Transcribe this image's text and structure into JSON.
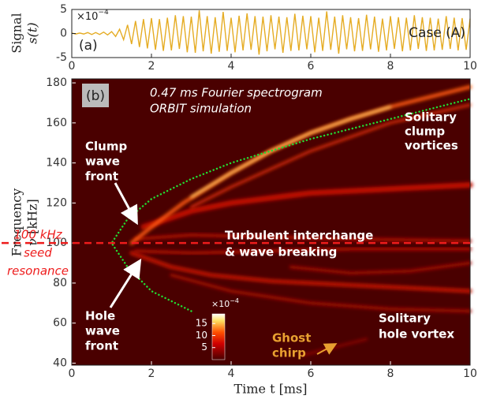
{
  "chart_data": [
    {
      "type": "line",
      "panel_label": "(a)",
      "title": "Case (A)",
      "ylabel": [
        "Signal",
        "s(t)"
      ],
      "multiplier": {
        "base": "×10",
        "exp": "−4"
      },
      "xlim": [
        0,
        10
      ],
      "ylim": [
        -5,
        5
      ],
      "xticks": [
        0,
        2,
        4,
        6,
        8,
        10
      ],
      "yticks": [
        -5,
        0,
        5
      ],
      "series": [
        {
          "color": "#e5ac24",
          "x": [
            0,
            0.1,
            0.2,
            0.3,
            0.4,
            0.5,
            0.6,
            0.7,
            0.8,
            0.9,
            1,
            1.1,
            1.2,
            1.3,
            1.4,
            1.5,
            1.6,
            1.7,
            1.8,
            1.9,
            2,
            2.1,
            2.2,
            2.3,
            2.4,
            2.5,
            2.6,
            2.7,
            2.8,
            2.9,
            3,
            3.1,
            3.2,
            3.3,
            3.4,
            3.5,
            3.6,
            3.7,
            3.8,
            3.9,
            4,
            4.1,
            4.2,
            4.3,
            4.4,
            4.5,
            4.6,
            4.7,
            4.8,
            4.9,
            5,
            5.1,
            5.2,
            5.3,
            5.4,
            5.5,
            5.6,
            5.7,
            5.8,
            5.9,
            6,
            6.1,
            6.2,
            6.3,
            6.4,
            6.5,
            6.6,
            6.7,
            6.8,
            6.9,
            7,
            7.1,
            7.2,
            7.3,
            7.4,
            7.5,
            7.6,
            7.7,
            7.8,
            7.9,
            8,
            8.1,
            8.2,
            8.3,
            8.4,
            8.5,
            8.6,
            8.7,
            8.8,
            8.9,
            9,
            9.1,
            9.2,
            9.3,
            9.4,
            9.5,
            9.6,
            9.7,
            9.8,
            9.9,
            10
          ],
          "values": [
            0.1,
            -0.1,
            0.1,
            -0.1,
            0.2,
            -0.2,
            0.2,
            -0.2,
            0.3,
            -0.3,
            0.4,
            -0.6,
            0.9,
            -1.3,
            1.8,
            -2.2,
            2.6,
            -2.8,
            3,
            -3.1,
            3.2,
            -3.4,
            3,
            -3.6,
            3.3,
            -3.5,
            3.8,
            -3.2,
            3.6,
            -3.9,
            3.5,
            -4,
            4.8,
            -3.7,
            3.6,
            -4.2,
            3.4,
            -3.8,
            4.5,
            -3.6,
            3.3,
            -3.9,
            3.7,
            -3.5,
            4.2,
            -3.4,
            3.6,
            -4.4,
            3.5,
            -3.7,
            3.8,
            -3.3,
            3.5,
            -4,
            3.4,
            -3.6,
            4.1,
            -3.5,
            3.7,
            -3.3,
            3.6,
            -3.9,
            3.3,
            -3.6,
            4.6,
            -3.4,
            3.5,
            -4.2,
            3.8,
            -3.3,
            3.4,
            -3.7,
            3.2,
            -3.6,
            3.9,
            -3.3,
            3.5,
            -3.8,
            3.1,
            -3.5,
            3.6,
            -3.2,
            3.4,
            -3.7,
            3.3,
            -3.5,
            3.8,
            -3.2,
            3.4,
            -3.6,
            3.3,
            -3.5,
            3.1,
            -3.4,
            3.6,
            -3.2,
            3.3,
            -3.5,
            3.2,
            -3.4,
            3.1
          ]
        }
      ]
    },
    {
      "type": "spectrogram",
      "panel_label": "(b)",
      "subtitle": [
        "0.47 ms Fourier spectrogram",
        "ORBIT simulation"
      ],
      "xlabel": "Time t [ms]",
      "ylabel": [
        "Frequency",
        "ν [kHz]"
      ],
      "xlim": [
        0,
        10
      ],
      "ylim": [
        39,
        182
      ],
      "xticks": [
        0,
        2,
        4,
        6,
        8,
        10
      ],
      "yticks": [
        40,
        60,
        80,
        100,
        120,
        140,
        160,
        180
      ],
      "background": "#4a0000",
      "series": [
        {
          "color": "#c01000",
          "x": [
            1.8,
            3,
            4,
            6,
            8,
            10
          ],
          "values": [
            108,
            116,
            120,
            125,
            127,
            129
          ]
        },
        {
          "color": "#b00c00",
          "x": [
            1.6,
            3,
            5,
            7,
            10
          ],
          "values": [
            102,
            104,
            103,
            102,
            101
          ]
        },
        {
          "color": "#b00c00",
          "x": [
            1.6,
            3,
            5,
            7,
            10
          ],
          "values": [
            96,
            95,
            96,
            97,
            97
          ]
        },
        {
          "color": "#c01400",
          "x": [
            1.5,
            2.5,
            3.5,
            5,
            7,
            9,
            10
          ],
          "values": [
            95,
            88,
            84,
            81,
            79,
            77,
            76
          ]
        },
        {
          "color": "#a00a00",
          "x": [
            2.5,
            4,
            6,
            8,
            10
          ],
          "values": [
            84,
            76,
            70,
            67,
            66
          ]
        },
        {
          "color": "#a00800",
          "x": [
            5.5,
            7,
            8.5,
            10
          ],
          "values": [
            88,
            85,
            86,
            90
          ]
        },
        {
          "color": "#900800",
          "x": [
            5.8,
            6.6,
            7.4
          ],
          "values": [
            44,
            48,
            52
          ]
        },
        {
          "color": "#e83010",
          "x": [
            3,
            4,
            6,
            8,
            10
          ],
          "values": [
            118,
            128,
            146,
            160,
            169
          ]
        },
        {
          "color": "#ff5a10",
          "x": [
            1.5,
            2,
            2.8,
            4,
            5,
            6,
            7,
            8,
            9,
            10
          ],
          "values": [
            100,
            108,
            120,
            135,
            146,
            155,
            162,
            168,
            173,
            178
          ]
        },
        {
          "color": "#ffe070",
          "x": [
            3,
            4,
            5,
            6,
            7,
            8
          ],
          "values": [
            123,
            135,
            146,
            155,
            162,
            168
          ]
        },
        {
          "color": "#22dd33",
          "dotted": true,
          "x": [
            3,
            2,
            1.4,
            1,
            1.4,
            2,
            3,
            4,
            6,
            8,
            10
          ],
          "values": [
            66,
            76,
            88,
            100,
            112,
            122,
            132,
            140,
            152,
            162,
            172
          ]
        }
      ],
      "hline": {
        "value": 100,
        "color": "#ee1c1c"
      },
      "annotations": {
        "clump_front": [
          "Clump",
          "wave",
          "front"
        ],
        "hole_front": [
          "Hole",
          "wave",
          "front"
        ],
        "turbulent": [
          "Turbulent interchange",
          "& wave breaking"
        ],
        "clump_vortices": [
          "Solitary",
          "clump",
          "vortices"
        ],
        "hole_vortex": [
          "Solitary",
          "hole vortex"
        ],
        "ghost": [
          "Ghost",
          "chirp"
        ],
        "seed": [
          "100 kHz",
          "seed",
          "resonance"
        ]
      },
      "colorbar": {
        "multiplier": {
          "base": "×10",
          "exp": "−4"
        },
        "lim": [
          0,
          19
        ],
        "ticks": [
          5,
          10,
          15
        ]
      }
    }
  ]
}
